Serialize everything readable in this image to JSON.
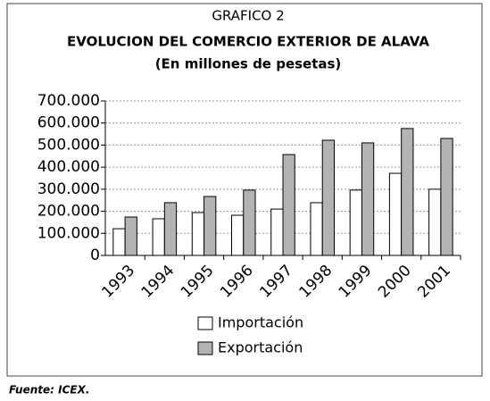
{
  "chart_data": {
    "type": "bar",
    "supertitle": "GRAFICO 2",
    "title": "EVOLUCION DEL COMERCIO EXTERIOR DE ALAVA",
    "subtitle": "(En millones de pesetas)",
    "source": "Fuente: ICEX.",
    "categories": [
      "1993",
      "1994",
      "1995",
      "1996",
      "1997",
      "1998",
      "1999",
      "2000",
      "2001"
    ],
    "series": [
      {
        "name": "Importación",
        "color": "#ffffff",
        "values": [
          121000,
          166000,
          194000,
          182000,
          210000,
          239000,
          296000,
          372000,
          300000
        ]
      },
      {
        "name": "Exportación",
        "color": "#b3b3b3",
        "values": [
          174000,
          239000,
          267000,
          296000,
          457000,
          522000,
          510000,
          575000,
          530000
        ]
      }
    ],
    "ylim": [
      0,
      700000
    ],
    "yticks": [
      0,
      {
        "value": 100000,
        "label": "100.000"
      },
      {
        "value": 200000,
        "label": "200.000"
      },
      {
        "value": 300000,
        "label": "300.000"
      },
      {
        "value": 400000,
        "label": "400.000"
      },
      {
        "value": 500000,
        "label": "500.000"
      },
      {
        "value": 600000,
        "label": "600.000"
      },
      {
        "value": 700000,
        "label": "700.000"
      }
    ],
    "grid": true,
    "legend": "bottom"
  }
}
